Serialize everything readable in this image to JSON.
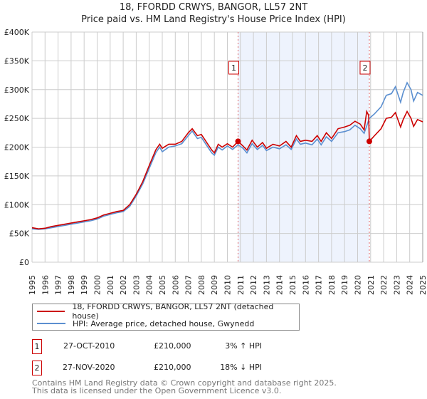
{
  "chart_data": {
    "type": "line",
    "title": "18, FFORDD CRWYS, BANGOR, LL57 2NT",
    "subtitle": "Price paid vs. HM Land Registry's House Price Index (HPI)",
    "ylim": [
      0,
      400000
    ],
    "xlim": [
      1995,
      2025
    ],
    "y_ticks": [
      {
        "v": 0,
        "label": "£0"
      },
      {
        "v": 50000,
        "label": "£50K"
      },
      {
        "v": 100000,
        "label": "£100K"
      },
      {
        "v": 150000,
        "label": "£150K"
      },
      {
        "v": 200000,
        "label": "£200K"
      },
      {
        "v": 250000,
        "label": "£250K"
      },
      {
        "v": 300000,
        "label": "£300K"
      },
      {
        "v": 350000,
        "label": "£350K"
      },
      {
        "v": 400000,
        "label": "£400K"
      }
    ],
    "x_ticks": [
      "1995",
      "1996",
      "1997",
      "1998",
      "1999",
      "2000",
      "2001",
      "2002",
      "2003",
      "2004",
      "2005",
      "2006",
      "2007",
      "2008",
      "2009",
      "2010",
      "2011",
      "2012",
      "2013",
      "2014",
      "2015",
      "2016",
      "2017",
      "2018",
      "2019",
      "2020",
      "2021",
      "2022",
      "2023",
      "2024",
      "2025"
    ],
    "grid": true,
    "shaded_range": [
      2010.82,
      2020.9
    ],
    "series": [
      {
        "name": "18, FFORDD CRWYS, BANGOR, LL57 2NT (detached house)",
        "color": "#cc0000",
        "points": [
          [
            1995,
            60000
          ],
          [
            1995.5,
            58000
          ],
          [
            1996,
            59000
          ],
          [
            1996.5,
            62000
          ],
          [
            1997,
            64000
          ],
          [
            1997.5,
            66000
          ],
          [
            1998,
            68000
          ],
          [
            1998.5,
            70000
          ],
          [
            1999,
            72000
          ],
          [
            1999.5,
            74000
          ],
          [
            2000,
            77000
          ],
          [
            2000.5,
            82000
          ],
          [
            2001,
            85000
          ],
          [
            2001.5,
            88000
          ],
          [
            2002,
            90000
          ],
          [
            2002.5,
            100000
          ],
          [
            2003,
            118000
          ],
          [
            2003.5,
            140000
          ],
          [
            2004,
            168000
          ],
          [
            2004.5,
            195000
          ],
          [
            2004.8,
            205000
          ],
          [
            2005,
            198000
          ],
          [
            2005.5,
            205000
          ],
          [
            2006,
            205000
          ],
          [
            2006.5,
            210000
          ],
          [
            2007,
            225000
          ],
          [
            2007.3,
            232000
          ],
          [
            2007.7,
            220000
          ],
          [
            2008,
            222000
          ],
          [
            2008.5,
            205000
          ],
          [
            2008.8,
            195000
          ],
          [
            2009,
            190000
          ],
          [
            2009.3,
            205000
          ],
          [
            2009.6,
            200000
          ],
          [
            2010,
            206000
          ],
          [
            2010.4,
            200000
          ],
          [
            2010.82,
            210000
          ],
          [
            2011.2,
            202000
          ],
          [
            2011.5,
            195000
          ],
          [
            2011.9,
            212000
          ],
          [
            2012.3,
            200000
          ],
          [
            2012.7,
            208000
          ],
          [
            2013,
            198000
          ],
          [
            2013.5,
            205000
          ],
          [
            2014,
            202000
          ],
          [
            2014.5,
            210000
          ],
          [
            2014.9,
            200000
          ],
          [
            2015.3,
            220000
          ],
          [
            2015.6,
            210000
          ],
          [
            2016,
            212000
          ],
          [
            2016.5,
            210000
          ],
          [
            2016.9,
            220000
          ],
          [
            2017.2,
            210000
          ],
          [
            2017.6,
            225000
          ],
          [
            2018,
            215000
          ],
          [
            2018.5,
            232000
          ],
          [
            2019,
            235000
          ],
          [
            2019.4,
            238000
          ],
          [
            2019.8,
            245000
          ],
          [
            2020.2,
            240000
          ],
          [
            2020.5,
            230000
          ],
          [
            2020.7,
            262000
          ],
          [
            2020.85,
            255000
          ],
          [
            2020.9,
            210000
          ],
          [
            2021.3,
            220000
          ],
          [
            2021.8,
            232000
          ],
          [
            2022.2,
            250000
          ],
          [
            2022.6,
            252000
          ],
          [
            2022.9,
            260000
          ],
          [
            2023.3,
            235000
          ],
          [
            2023.5,
            248000
          ],
          [
            2023.8,
            262000
          ],
          [
            2024.1,
            250000
          ],
          [
            2024.3,
            236000
          ],
          [
            2024.6,
            248000
          ],
          [
            2025,
            244000
          ]
        ]
      },
      {
        "name": "HPI: Average price, detached house, Gwynedd",
        "color": "#5b8fd0",
        "points": [
          [
            1995,
            58000
          ],
          [
            1995.5,
            57000
          ],
          [
            1996,
            58000
          ],
          [
            1996.5,
            60000
          ],
          [
            1997,
            62000
          ],
          [
            1997.5,
            64000
          ],
          [
            1998,
            66000
          ],
          [
            1998.5,
            68000
          ],
          [
            1999,
            70000
          ],
          [
            1999.5,
            72000
          ],
          [
            2000,
            75000
          ],
          [
            2000.5,
            80000
          ],
          [
            2001,
            83000
          ],
          [
            2001.5,
            86000
          ],
          [
            2002,
            88000
          ],
          [
            2002.5,
            97000
          ],
          [
            2003,
            115000
          ],
          [
            2003.5,
            136000
          ],
          [
            2004,
            163000
          ],
          [
            2004.5,
            190000
          ],
          [
            2004.8,
            200000
          ],
          [
            2005,
            192000
          ],
          [
            2005.5,
            200000
          ],
          [
            2006,
            202000
          ],
          [
            2006.5,
            206000
          ],
          [
            2007,
            220000
          ],
          [
            2007.3,
            228000
          ],
          [
            2007.7,
            215000
          ],
          [
            2008,
            217000
          ],
          [
            2008.5,
            200000
          ],
          [
            2008.8,
            190000
          ],
          [
            2009,
            186000
          ],
          [
            2009.3,
            200000
          ],
          [
            2009.6,
            195000
          ],
          [
            2010,
            202000
          ],
          [
            2010.4,
            196000
          ],
          [
            2010.82,
            204000
          ],
          [
            2011.2,
            198000
          ],
          [
            2011.5,
            190000
          ],
          [
            2011.9,
            206000
          ],
          [
            2012.3,
            196000
          ],
          [
            2012.7,
            203000
          ],
          [
            2013,
            194000
          ],
          [
            2013.5,
            200000
          ],
          [
            2014,
            197000
          ],
          [
            2014.5,
            204000
          ],
          [
            2014.9,
            196000
          ],
          [
            2015.3,
            214000
          ],
          [
            2015.6,
            205000
          ],
          [
            2016,
            207000
          ],
          [
            2016.5,
            204000
          ],
          [
            2016.9,
            214000
          ],
          [
            2017.2,
            204000
          ],
          [
            2017.6,
            218000
          ],
          [
            2018,
            210000
          ],
          [
            2018.5,
            225000
          ],
          [
            2019,
            227000
          ],
          [
            2019.4,
            230000
          ],
          [
            2019.8,
            238000
          ],
          [
            2020.2,
            232000
          ],
          [
            2020.5,
            224000
          ],
          [
            2020.9,
            250000
          ],
          [
            2021.3,
            258000
          ],
          [
            2021.8,
            270000
          ],
          [
            2022.2,
            290000
          ],
          [
            2022.6,
            293000
          ],
          [
            2022.9,
            305000
          ],
          [
            2023.3,
            278000
          ],
          [
            2023.5,
            295000
          ],
          [
            2023.8,
            312000
          ],
          [
            2024.1,
            300000
          ],
          [
            2024.3,
            280000
          ],
          [
            2024.6,
            295000
          ],
          [
            2025,
            290000
          ]
        ]
      }
    ],
    "annotations": [
      {
        "label": "1",
        "x": 2010.82,
        "y": 210000,
        "date": "27-OCT-2010",
        "price": "£210,000",
        "hpi": "3% ↑ HPI"
      },
      {
        "label": "2",
        "x": 2020.9,
        "y": 210000,
        "date": "27-NOV-2020",
        "price": "£210,000",
        "hpi": "18% ↓ HPI"
      }
    ]
  },
  "footer": [
    "Contains HM Land Registry data © Crown copyright and database right 2025.",
    "This data is licensed under the Open Government Licence v3.0."
  ]
}
